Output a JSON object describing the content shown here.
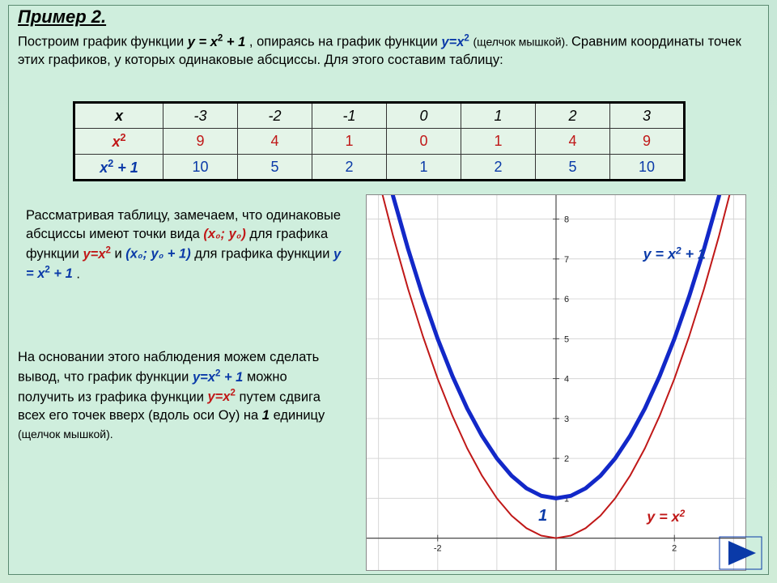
{
  "heading": "Пример 2.",
  "intro": {
    "pre": "Построим график функции ",
    "eq1_a": "y = x",
    "eq1_sup": "2",
    "eq1_b": " + 1",
    "mid1": ", опираясь на график функции ",
    "eq2_a": "y=x",
    "eq2_sup": "2",
    "hint": " (щелчок мышкой). ",
    "line2": "Сравним координаты точек этих графиков, у которых одинаковые абсциссы. Для этого составим  таблицу:"
  },
  "table": {
    "headers": {
      "r1": "x",
      "r2": "x",
      "r2_sup": "2",
      "r3": "x",
      "r3_sup": "2",
      "r3_suf": " + 1"
    },
    "rows": {
      "x": [
        "-3",
        "-2",
        "-1",
        "0",
        "1",
        "2",
        "3"
      ],
      "x2": [
        "9",
        "4",
        "1",
        "0",
        "1",
        "4",
        "9"
      ],
      "x21": [
        "10",
        "5",
        "2",
        "1",
        "2",
        "5",
        "10"
      ]
    }
  },
  "para1": {
    "t1": "Рассматривая таблицу, замечаем, что одинаковые абсциссы имеют точки вида ",
    "red1": "(x₀; y₀)",
    "t2": " для графика функции ",
    "red2_a": "y=x",
    "red2_sup": "2",
    "t3": " и ",
    "blue1": "(x₀; y₀ + 1)",
    "t4": " для графика функции ",
    "blue2_a": "y = x",
    "blue2_sup": "2",
    "blue2_b": " + 1",
    "t5": "."
  },
  "para2": {
    "t1": "На основании этого наблюдения можем сделать вывод, что график функции ",
    "blue_a": "y=x",
    "blue_sup": "2",
    "blue_b": " + 1",
    "t2": " можно получить из графика функции ",
    "red_a": "y=x",
    "red_sup": "2",
    "t3": " путем сдвига всех его точек вверх (вдоль оси Оу) на ",
    "one": "1",
    "t4": " единицу ",
    "hint": "(щелчок мышкой)."
  },
  "chart": {
    "type": "line",
    "background_color": "#ffffff",
    "grid_color": "#d6d6d6",
    "axis_color": "#4a4a4a",
    "x_range": [
      -3.2,
      3.2
    ],
    "y_range": [
      -0.8,
      8.6
    ],
    "x_ticks": [
      -2,
      2
    ],
    "y_ticks": [
      1,
      2,
      3,
      4,
      5,
      6,
      7,
      8
    ],
    "series": [
      {
        "name": "y=x^2",
        "color": "#c01818",
        "stroke_width": 2,
        "legend": "y = x",
        "legend_sup": "2",
        "legend_pos": {
          "x": 0.74,
          "y": 0.87
        },
        "points": [
          [
            -3,
            9
          ],
          [
            -2.75,
            7.5625
          ],
          [
            -2.5,
            6.25
          ],
          [
            -2.25,
            5.0625
          ],
          [
            -2,
            4
          ],
          [
            -1.75,
            3.0625
          ],
          [
            -1.5,
            2.25
          ],
          [
            -1.25,
            1.5625
          ],
          [
            -1,
            1
          ],
          [
            -0.75,
            0.5625
          ],
          [
            -0.5,
            0.25
          ],
          [
            -0.25,
            0.0625
          ],
          [
            0,
            0
          ],
          [
            0.25,
            0.0625
          ],
          [
            0.5,
            0.25
          ],
          [
            0.75,
            0.5625
          ],
          [
            1,
            1
          ],
          [
            1.25,
            1.5625
          ],
          [
            1.5,
            2.25
          ],
          [
            1.75,
            3.0625
          ],
          [
            2,
            4
          ],
          [
            2.25,
            5.0625
          ],
          [
            2.5,
            6.25
          ],
          [
            2.75,
            7.5625
          ],
          [
            3,
            9
          ]
        ]
      },
      {
        "name": "y=x^2+1",
        "color": "#1228c8",
        "stroke_width": 5,
        "legend": "y = x",
        "legend_sup": "2",
        "legend_suf": " + 1",
        "legend_pos": {
          "x": 0.73,
          "y": 0.17
        },
        "points": [
          [
            -3,
            10
          ],
          [
            -2.75,
            8.5625
          ],
          [
            -2.5,
            7.25
          ],
          [
            -2.25,
            6.0625
          ],
          [
            -2,
            5
          ],
          [
            -1.75,
            4.0625
          ],
          [
            -1.5,
            3.25
          ],
          [
            -1.25,
            2.5625
          ],
          [
            -1,
            2
          ],
          [
            -0.75,
            1.5625
          ],
          [
            -0.5,
            1.25
          ],
          [
            -0.25,
            1.0625
          ],
          [
            0,
            1
          ],
          [
            0.25,
            1.0625
          ],
          [
            0.5,
            1.25
          ],
          [
            0.75,
            1.5625
          ],
          [
            1,
            2
          ],
          [
            1.25,
            2.5625
          ],
          [
            1.5,
            3.25
          ],
          [
            1.75,
            4.0625
          ],
          [
            2,
            5
          ],
          [
            2.25,
            6.0625
          ],
          [
            2.5,
            7.25
          ],
          [
            2.75,
            8.5625
          ],
          [
            3,
            10
          ]
        ]
      }
    ],
    "vertex_label": "1",
    "axis_label_fontsize": 11,
    "legend_fontsize": 18
  },
  "nav": {
    "fill": "#0a3aa8"
  }
}
